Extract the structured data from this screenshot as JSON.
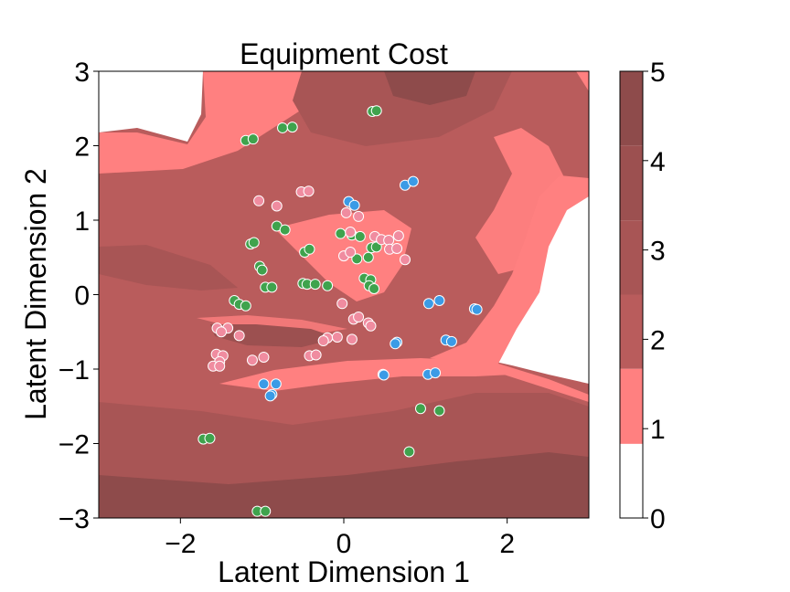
{
  "chart_data": {
    "type": "scatter",
    "title": "Equipment Cost",
    "xlabel": "Latent Dimension 1",
    "ylabel": "Latent Dimension 2",
    "xlim": [
      -3,
      3
    ],
    "ylim": [
      -3,
      3
    ],
    "xticks": [
      {
        "v": -2,
        "label": "−2"
      },
      {
        "v": 0,
        "label": "0"
      },
      {
        "v": 2,
        "label": "2"
      }
    ],
    "yticks": [
      {
        "v": -3,
        "label": "−3"
      },
      {
        "v": -2,
        "label": "−2"
      },
      {
        "v": -1,
        "label": "−1"
      },
      {
        "v": 0,
        "label": "0"
      },
      {
        "v": 1,
        "label": "1"
      },
      {
        "v": 2,
        "label": "2"
      },
      {
        "v": 3,
        "label": "3"
      }
    ],
    "grid": false,
    "background": "filled contour map of equipment cost",
    "colorbar": {
      "range": [
        0,
        5
      ],
      "ticks": [
        {
          "v": 0,
          "label": "0"
        },
        {
          "v": 1,
          "label": "1"
        },
        {
          "v": 2,
          "label": "2"
        },
        {
          "v": 3,
          "label": "3"
        },
        {
          "v": 4,
          "label": "4"
        },
        {
          "v": 5,
          "label": "5"
        }
      ],
      "levels": [
        0,
        0.83,
        1.67,
        2.5,
        3.33,
        4.17,
        5
      ],
      "colors": [
        "#ffffff",
        "#ff8080",
        "#b95c5c",
        "#a85555",
        "#9c5050",
        "#8e4b4b"
      ]
    },
    "series": [
      {
        "color": "#3fa34d",
        "points": [
          [
            0.35,
            2.46
          ],
          [
            0.4,
            2.47
          ],
          [
            -0.75,
            2.24
          ],
          [
            -0.63,
            2.25
          ],
          [
            -1.2,
            2.07
          ],
          [
            -1.11,
            2.09
          ],
          [
            -0.82,
            0.92
          ],
          [
            -0.72,
            0.87
          ],
          [
            -1.14,
            0.68
          ],
          [
            -1.1,
            0.7
          ],
          [
            -0.48,
            0.57
          ],
          [
            -0.42,
            0.61
          ],
          [
            -0.04,
            0.82
          ],
          [
            0.1,
            0.8
          ],
          [
            0.2,
            0.78
          ],
          [
            0.34,
            0.63
          ],
          [
            0.4,
            0.64
          ],
          [
            0.3,
            0.5
          ],
          [
            0.16,
            0.48
          ],
          [
            -1.03,
            0.38
          ],
          [
            -1.0,
            0.33
          ],
          [
            0.25,
            0.22
          ],
          [
            0.33,
            0.2
          ],
          [
            -0.96,
            0.1
          ],
          [
            -0.88,
            0.1
          ],
          [
            -0.5,
            0.15
          ],
          [
            -0.45,
            0.14
          ],
          [
            -0.35,
            0.14
          ],
          [
            -0.2,
            0.12
          ],
          [
            0.31,
            0.12
          ],
          [
            0.37,
            0.08
          ],
          [
            -1.34,
            -0.08
          ],
          [
            -1.28,
            -0.13
          ],
          [
            -1.2,
            -0.15
          ],
          [
            0.94,
            -1.53
          ],
          [
            1.17,
            -1.56
          ],
          [
            -1.72,
            -1.94
          ],
          [
            -1.64,
            -1.93
          ],
          [
            0.8,
            -2.11
          ],
          [
            -1.06,
            -2.91
          ],
          [
            -0.96,
            -2.91
          ]
        ]
      },
      {
        "color": "#f08ca0",
        "points": [
          [
            -1.04,
            1.26
          ],
          [
            -0.82,
            1.19
          ],
          [
            -0.52,
            1.38
          ],
          [
            -0.43,
            1.39
          ],
          [
            0.03,
            1.1
          ],
          [
            0.18,
            1.05
          ],
          [
            0.08,
            0.84
          ],
          [
            0.38,
            0.78
          ],
          [
            0.46,
            0.74
          ],
          [
            0.55,
            0.73
          ],
          [
            0.67,
            0.79
          ],
          [
            0.56,
            0.61
          ],
          [
            0.65,
            0.62
          ],
          [
            0.0,
            0.52
          ],
          [
            0.08,
            0.57
          ],
          [
            0.75,
            0.47
          ],
          [
            -0.02,
            -0.12
          ],
          [
            -1.55,
            -0.45
          ],
          [
            -1.42,
            -0.45
          ],
          [
            -1.5,
            -0.5
          ],
          [
            -1.28,
            -0.55
          ],
          [
            0.12,
            -0.33
          ],
          [
            0.18,
            -0.3
          ],
          [
            0.3,
            -0.38
          ],
          [
            0.33,
            -0.42
          ],
          [
            -0.2,
            -0.58
          ],
          [
            -0.25,
            -0.62
          ],
          [
            -0.08,
            -0.57
          ],
          [
            0.1,
            -0.6
          ],
          [
            -1.56,
            -0.8
          ],
          [
            -1.48,
            -0.82
          ],
          [
            -1.52,
            -0.9
          ],
          [
            -1.6,
            -0.96
          ],
          [
            -1.52,
            -0.96
          ],
          [
            -0.98,
            -0.84
          ],
          [
            -1.12,
            -0.88
          ],
          [
            -0.42,
            -0.82
          ],
          [
            -0.34,
            -0.81
          ]
        ]
      },
      {
        "color": "#3b9be6",
        "points": [
          [
            0.06,
            1.25
          ],
          [
            0.13,
            1.2
          ],
          [
            0.75,
            1.47
          ],
          [
            0.85,
            1.52
          ],
          [
            1.04,
            -0.12
          ],
          [
            1.17,
            -0.08
          ],
          [
            1.6,
            -0.19
          ],
          [
            1.63,
            -0.2
          ],
          [
            1.25,
            -0.61
          ],
          [
            1.32,
            -0.63
          ],
          [
            0.65,
            -0.64
          ],
          [
            0.63,
            -0.66
          ],
          [
            0.48,
            -1.07
          ],
          [
            0.49,
            -1.08
          ],
          [
            1.03,
            -1.07
          ],
          [
            1.12,
            -1.05
          ],
          [
            -0.98,
            -1.2
          ],
          [
            -0.83,
            -1.2
          ],
          [
            -0.88,
            -1.34
          ],
          [
            -0.9,
            -1.36
          ]
        ]
      }
    ]
  }
}
